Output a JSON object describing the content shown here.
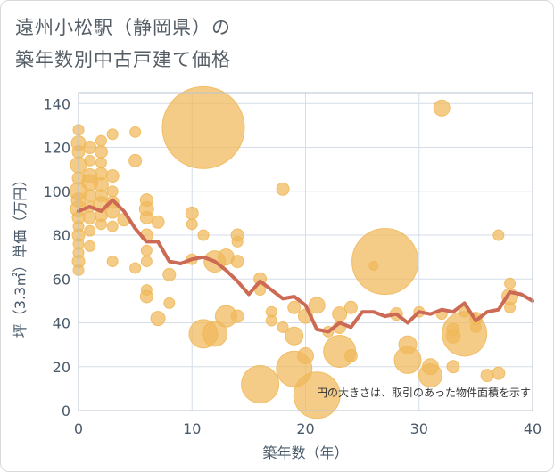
{
  "title": {
    "line1": "遠州小松駅（静岡県）の",
    "line2": "築年数別中古戸建て価格"
  },
  "note": "円の大きさは、取引のあった物件面積を示す",
  "colors": {
    "bubble": "#f0b95a",
    "line": "#cd6a55",
    "grid": "#d6dde8",
    "plot_border": "#b9c3cf",
    "text": "#4a5a6a"
  },
  "chart_data": {
    "type": "scatter",
    "xlabel": "築年数（年）",
    "ylabel": "坪（3.3㎡）単価（万円）",
    "xlim": [
      0,
      40
    ],
    "ylim": [
      0,
      145
    ],
    "xticks": [
      0,
      10,
      20,
      30,
      40
    ],
    "yticks": [
      0,
      20,
      40,
      60,
      80,
      100,
      120,
      140
    ],
    "grid": true,
    "bubbles": [
      {
        "x": 0,
        "y": 128,
        "s": 6
      },
      {
        "x": 0,
        "y": 122,
        "s": 8
      },
      {
        "x": 0,
        "y": 118,
        "s": 7
      },
      {
        "x": 0,
        "y": 112,
        "s": 9
      },
      {
        "x": 0,
        "y": 106,
        "s": 7
      },
      {
        "x": 0,
        "y": 100,
        "s": 10
      },
      {
        "x": 0,
        "y": 96,
        "s": 8
      },
      {
        "x": 0,
        "y": 92,
        "s": 9
      },
      {
        "x": 0,
        "y": 88,
        "s": 7
      },
      {
        "x": 0,
        "y": 84,
        "s": 6
      },
      {
        "x": 0,
        "y": 80,
        "s": 7
      },
      {
        "x": 0,
        "y": 76,
        "s": 6
      },
      {
        "x": 0,
        "y": 72,
        "s": 6
      },
      {
        "x": 0,
        "y": 68,
        "s": 7
      },
      {
        "x": 0,
        "y": 64,
        "s": 6
      },
      {
        "x": 1,
        "y": 120,
        "s": 7
      },
      {
        "x": 1,
        "y": 114,
        "s": 6
      },
      {
        "x": 1,
        "y": 107,
        "s": 8
      },
      {
        "x": 1,
        "y": 104,
        "s": 9
      },
      {
        "x": 1,
        "y": 98,
        "s": 7
      },
      {
        "x": 1,
        "y": 93,
        "s": 6
      },
      {
        "x": 1,
        "y": 88,
        "s": 7
      },
      {
        "x": 1,
        "y": 82,
        "s": 6
      },
      {
        "x": 1,
        "y": 75,
        "s": 6
      },
      {
        "x": 2,
        "y": 123,
        "s": 6
      },
      {
        "x": 2,
        "y": 118,
        "s": 7
      },
      {
        "x": 2,
        "y": 113,
        "s": 6
      },
      {
        "x": 2,
        "y": 108,
        "s": 7
      },
      {
        "x": 2,
        "y": 103,
        "s": 8
      },
      {
        "x": 2,
        "y": 98,
        "s": 7
      },
      {
        "x": 2,
        "y": 94,
        "s": 9
      },
      {
        "x": 2,
        "y": 89,
        "s": 7
      },
      {
        "x": 2,
        "y": 85,
        "s": 6
      },
      {
        "x": 3,
        "y": 126,
        "s": 6
      },
      {
        "x": 3,
        "y": 107,
        "s": 7
      },
      {
        "x": 3,
        "y": 100,
        "s": 6
      },
      {
        "x": 3,
        "y": 95,
        "s": 7
      },
      {
        "x": 3,
        "y": 91,
        "s": 8
      },
      {
        "x": 3,
        "y": 84,
        "s": 6
      },
      {
        "x": 3,
        "y": 68,
        "s": 6
      },
      {
        "x": 4,
        "y": 87,
        "s": 7
      },
      {
        "x": 5,
        "y": 127,
        "s": 6
      },
      {
        "x": 5,
        "y": 114,
        "s": 7
      },
      {
        "x": 5,
        "y": 65,
        "s": 6
      },
      {
        "x": 6,
        "y": 96,
        "s": 7
      },
      {
        "x": 6,
        "y": 92,
        "s": 8
      },
      {
        "x": 6,
        "y": 88,
        "s": 7
      },
      {
        "x": 6,
        "y": 80,
        "s": 7
      },
      {
        "x": 6,
        "y": 73,
        "s": 6
      },
      {
        "x": 6,
        "y": 68,
        "s": 6
      },
      {
        "x": 6,
        "y": 55,
        "s": 6
      },
      {
        "x": 6,
        "y": 52,
        "s": 7
      },
      {
        "x": 7,
        "y": 86,
        "s": 7
      },
      {
        "x": 7,
        "y": 42,
        "s": 8
      },
      {
        "x": 8,
        "y": 62,
        "s": 7
      },
      {
        "x": 8,
        "y": 49,
        "s": 6
      },
      {
        "x": 10,
        "y": 90,
        "s": 7
      },
      {
        "x": 10,
        "y": 85,
        "s": 6
      },
      {
        "x": 10,
        "y": 69,
        "s": 6
      },
      {
        "x": 11,
        "y": 129,
        "s": 46
      },
      {
        "x": 11,
        "y": 80,
        "s": 6
      },
      {
        "x": 11,
        "y": 35,
        "s": 16
      },
      {
        "x": 12,
        "y": 68,
        "s": 12
      },
      {
        "x": 12,
        "y": 35,
        "s": 14
      },
      {
        "x": 13,
        "y": 70,
        "s": 9
      },
      {
        "x": 13,
        "y": 43,
        "s": 12
      },
      {
        "x": 14,
        "y": 80,
        "s": 7
      },
      {
        "x": 14,
        "y": 77,
        "s": 6
      },
      {
        "x": 14,
        "y": 68,
        "s": 7
      },
      {
        "x": 14,
        "y": 43,
        "s": 7
      },
      {
        "x": 16,
        "y": 60,
        "s": 7
      },
      {
        "x": 16,
        "y": 55,
        "s": 6
      },
      {
        "x": 16,
        "y": 12,
        "s": 21
      },
      {
        "x": 17,
        "y": 45,
        "s": 6
      },
      {
        "x": 17,
        "y": 41,
        "s": 6
      },
      {
        "x": 18,
        "y": 101,
        "s": 7
      },
      {
        "x": 18,
        "y": 38,
        "s": 6
      },
      {
        "x": 19,
        "y": 47,
        "s": 7
      },
      {
        "x": 19,
        "y": 34,
        "s": 10
      },
      {
        "x": 19,
        "y": 19,
        "s": 20
      },
      {
        "x": 20,
        "y": 43,
        "s": 8
      },
      {
        "x": 20,
        "y": 25,
        "s": 9
      },
      {
        "x": 21,
        "y": 48,
        "s": 9
      },
      {
        "x": 21,
        "y": 7,
        "s": 26
      },
      {
        "x": 22,
        "y": 36,
        "s": 6
      },
      {
        "x": 23,
        "y": 44,
        "s": 8
      },
      {
        "x": 23,
        "y": 38,
        "s": 7
      },
      {
        "x": 23,
        "y": 27,
        "s": 18
      },
      {
        "x": 24,
        "y": 47,
        "s": 7
      },
      {
        "x": 24,
        "y": 25,
        "s": 7
      },
      {
        "x": 26,
        "y": 66,
        "s": 5
      },
      {
        "x": 27,
        "y": 68,
        "s": 37
      },
      {
        "x": 28,
        "y": 44,
        "s": 7
      },
      {
        "x": 29,
        "y": 30,
        "s": 10
      },
      {
        "x": 29,
        "y": 23,
        "s": 15
      },
      {
        "x": 30,
        "y": 45,
        "s": 6
      },
      {
        "x": 31,
        "y": 20,
        "s": 9
      },
      {
        "x": 31,
        "y": 16,
        "s": 13
      },
      {
        "x": 32,
        "y": 138,
        "s": 9
      },
      {
        "x": 32,
        "y": 44,
        "s": 6
      },
      {
        "x": 33,
        "y": 37,
        "s": 7
      },
      {
        "x": 33,
        "y": 34,
        "s": 8
      },
      {
        "x": 33,
        "y": 20,
        "s": 7
      },
      {
        "x": 34,
        "y": 35,
        "s": 25
      },
      {
        "x": 34,
        "y": 45,
        "s": 6
      },
      {
        "x": 35,
        "y": 42,
        "s": 7
      },
      {
        "x": 35,
        "y": 38,
        "s": 6
      },
      {
        "x": 36,
        "y": 16,
        "s": 7
      },
      {
        "x": 37,
        "y": 80,
        "s": 6
      },
      {
        "x": 37,
        "y": 17,
        "s": 7
      },
      {
        "x": 38,
        "y": 58,
        "s": 6
      },
      {
        "x": 38,
        "y": 52,
        "s": 9
      },
      {
        "x": 38,
        "y": 47,
        "s": 6
      }
    ],
    "series": [
      {
        "x": [
          0,
          1,
          2,
          3,
          4,
          5,
          6,
          7,
          8,
          9,
          10,
          11,
          12,
          13,
          14,
          15,
          16,
          17,
          18,
          19,
          20,
          21,
          22,
          23,
          24,
          25,
          26,
          27,
          28,
          29,
          30,
          31,
          32,
          33,
          34,
          35,
          36,
          37,
          38,
          39,
          40
        ],
        "values": [
          91,
          93,
          91,
          96,
          91,
          83,
          77,
          77,
          68,
          67,
          69,
          70,
          68,
          64,
          59,
          53,
          59,
          55,
          51,
          52,
          48,
          37,
          36,
          40,
          38,
          45,
          45,
          43,
          44,
          40,
          45,
          44,
          46,
          45,
          49,
          41,
          45,
          46,
          54,
          53,
          50
        ]
      }
    ]
  }
}
